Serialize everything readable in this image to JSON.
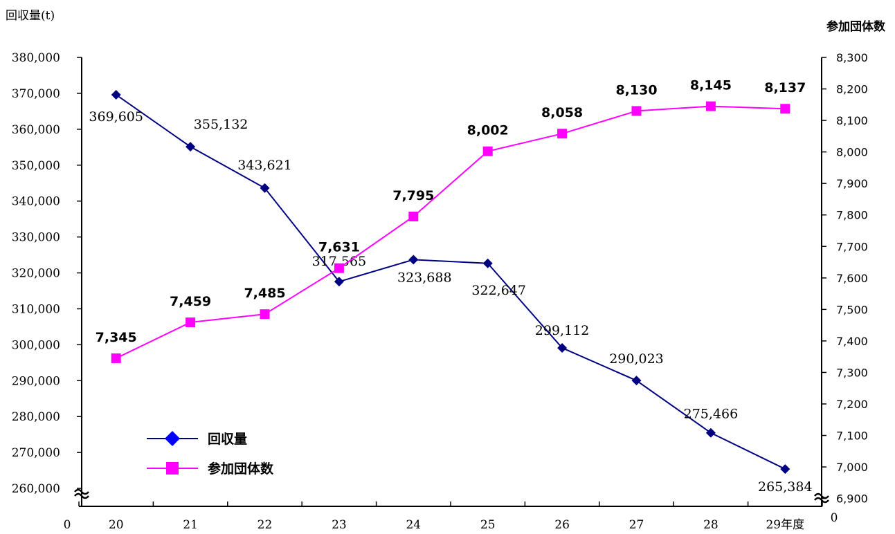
{
  "chart_data": {
    "type": "line",
    "x_categories": [
      "20",
      "21",
      "22",
      "23",
      "24",
      "25",
      "26",
      "27",
      "28",
      "29年度"
    ],
    "left_axis": {
      "label": "回収量(t)",
      "min": 255000,
      "max": 380000,
      "ticks": [
        "380,000",
        "370,000",
        "360,000",
        "350,000",
        "340,000",
        "330,000",
        "320,000",
        "310,000",
        "300,000",
        "290,000",
        "280,000",
        "270,000",
        "260,000"
      ],
      "zero_label": "0",
      "axis_break": true
    },
    "right_axis": {
      "label": "参加団体数",
      "min": 6875,
      "max": 8300,
      "ticks": [
        "8,300",
        "8,200",
        "8,100",
        "8,000",
        "7,900",
        "7,800",
        "7,700",
        "7,600",
        "7,500",
        "7,400",
        "7,300",
        "7,200",
        "7,100",
        "7,000",
        "6,900"
      ],
      "zero_label": "0",
      "axis_break": true
    },
    "series": [
      {
        "name": "回収量",
        "axis": "left",
        "color": "#000080",
        "marker": "diamond",
        "values": [
          369605,
          355132,
          343621,
          317565,
          323688,
          322647,
          299112,
          290023,
          275466,
          265384
        ],
        "labels": [
          "369,605",
          "355,132",
          "343,621",
          "317,565",
          "323,688",
          "322,647",
          "299,112",
          "290,023",
          "275,466",
          "265,384"
        ]
      },
      {
        "name": "参加団体数",
        "axis": "right",
        "color": "#ff00ff",
        "marker": "square",
        "values": [
          7345,
          7459,
          7485,
          7631,
          7795,
          8002,
          8058,
          8130,
          8145,
          8137
        ],
        "labels": [
          "7,345",
          "7,459",
          "7,485",
          "7,631",
          "7,795",
          "8,002",
          "8,058",
          "8,130",
          "8,145",
          "8,137"
        ]
      }
    ],
    "legend": {
      "position": "bottom-left",
      "items": [
        "回収量",
        "参加団体数"
      ]
    },
    "grid": false
  }
}
